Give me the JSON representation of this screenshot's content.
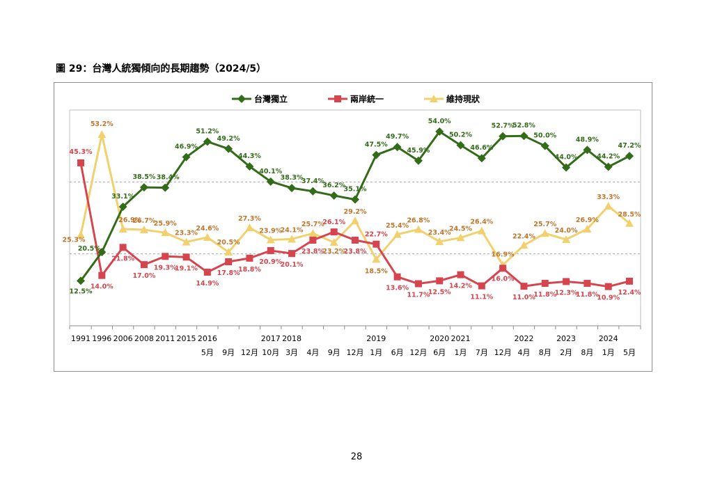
{
  "page": {
    "figure_title": "圖 29：台灣人統獨傾向的長期趨勢（2024/5）",
    "page_number": "28"
  },
  "chart_data": {
    "type": "line",
    "title": "",
    "xlabel": "",
    "ylabel": "",
    "ylim": [
      0,
      60
    ],
    "grid": "horizontal dashed",
    "legend_position": "top",
    "x_year_labels": [
      "1991",
      "1996",
      "2006",
      "2008",
      "2011",
      "2015",
      "2016",
      "",
      "",
      "2017",
      "2018",
      "",
      "",
      "",
      "2019",
      "",
      "",
      "2020",
      "2021",
      "",
      "",
      "2022",
      "",
      "2023",
      "",
      "2024",
      ""
    ],
    "x_month_labels": [
      "",
      "",
      "",
      "",
      "",
      "",
      "5月",
      "9月",
      "12月",
      "10月",
      "3月",
      "4月",
      "9月",
      "12月",
      "1月",
      "6月",
      "12月",
      "6月",
      "1月",
      "7月",
      "12月",
      "4月",
      "8月",
      "2月",
      "8月",
      "1月",
      "5月"
    ],
    "series": [
      {
        "name": "台灣獨立",
        "color": "#336c19",
        "marker": "diamond",
        "values": [
          12.5,
          20.5,
          33.1,
          38.5,
          38.4,
          46.9,
          51.2,
          49.2,
          44.3,
          40.1,
          38.3,
          37.4,
          36.2,
          35.1,
          47.5,
          49.7,
          45.9,
          54.0,
          50.2,
          46.6,
          52.7,
          52.8,
          50.0,
          44.0,
          48.9,
          44.2,
          47.2
        ],
        "labels": [
          "12.5%",
          "20.5%",
          "33.1%",
          "38.5%",
          "38.4%",
          "46.9%",
          "51.2%",
          "49.2%",
          "44.3%",
          "40.1%",
          "38.3%",
          "37.4%",
          "36.2%",
          "35.1%",
          "47.5%",
          "49.7%",
          "45.9%",
          "54.0%",
          "50.2%",
          "46.6%",
          "52.7%",
          "52.8%",
          "50.0%",
          "44.0%",
          "48.9%",
          "44.2%",
          "47.2%"
        ]
      },
      {
        "name": "兩岸統一",
        "color": "#d6454d",
        "marker": "square",
        "values": [
          45.3,
          14.0,
          21.8,
          17.0,
          19.3,
          19.1,
          14.9,
          17.8,
          18.8,
          20.9,
          20.1,
          23.8,
          26.1,
          23.8,
          22.7,
          13.6,
          11.7,
          12.5,
          14.2,
          11.1,
          16.0,
          11.0,
          11.8,
          12.3,
          11.8,
          10.9,
          12.4
        ],
        "labels": [
          "45.3%",
          "14.0%",
          "21.8%",
          "17.0%",
          "19.3%",
          "19.1%",
          "14.9%",
          "17.8%",
          "18.8%",
          "20.9%",
          "20.1%",
          "23.8%",
          "26.1%",
          "23.8%",
          "22.7%",
          "13.6%",
          "11.7%",
          "12.5%",
          "14.2%",
          "11.1%",
          "16.0%",
          "11.0%",
          "11.8%",
          "12.3%",
          "11.8%",
          "10.9%",
          "12.4%"
        ]
      },
      {
        "name": "維持現狀",
        "color": "#f1d16e",
        "label_color": "#c0762b",
        "marker": "triangle",
        "values": [
          25.3,
          53.2,
          26.9,
          26.7,
          25.9,
          23.3,
          24.6,
          20.5,
          27.3,
          23.9,
          24.1,
          25.7,
          23.2,
          29.2,
          18.5,
          25.4,
          26.8,
          23.4,
          24.5,
          26.4,
          16.9,
          22.4,
          25.7,
          24.0,
          26.9,
          33.3,
          28.5
        ],
        "labels": [
          "25.3%",
          "53.2%",
          "26.9%",
          "26.7%",
          "25.9%",
          "23.3%",
          "24.6%",
          "20.5%",
          "27.3%",
          "23.9%",
          "24.1%",
          "25.7%",
          "23.2%",
          "29.2%",
          "18.5%",
          "25.4%",
          "26.8%",
          "23.4%",
          "24.5%",
          "26.4%",
          "16.9%",
          "22.4%",
          "25.7%",
          "24.0%",
          "26.9%",
          "33.3%",
          "28.5%"
        ]
      }
    ]
  }
}
